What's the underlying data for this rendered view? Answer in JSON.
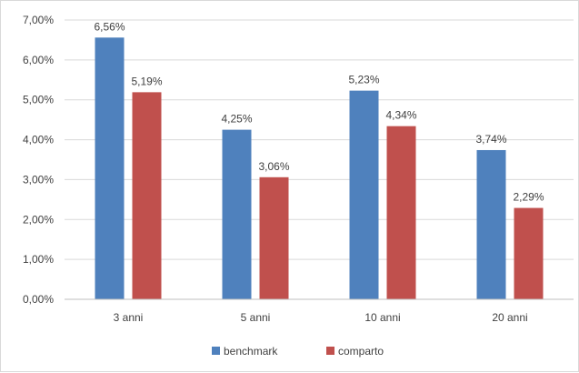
{
  "chart_data": {
    "type": "bar",
    "categories": [
      "3 anni",
      "5 anni",
      "10 anni",
      "20 anni"
    ],
    "series": [
      {
        "name": "benchmark",
        "values": [
          6.56,
          4.25,
          5.23,
          3.74
        ],
        "labels": [
          "6,56%",
          "4,25%",
          "5,23%",
          "3,74%"
        ],
        "color": "#4f81bd"
      },
      {
        "name": "comparto",
        "values": [
          5.19,
          3.06,
          4.34,
          2.29
        ],
        "labels": [
          "5,19%",
          "3,06%",
          "4,34%",
          "2,29%"
        ],
        "color": "#c0504d"
      }
    ],
    "ylim": [
      0,
      7
    ],
    "yticks": [
      0,
      1,
      2,
      3,
      4,
      5,
      6,
      7
    ],
    "ytick_labels": [
      "0,00%",
      "1,00%",
      "2,00%",
      "3,00%",
      "4,00%",
      "5,00%",
      "6,00%",
      "7,00%"
    ],
    "title": "",
    "xlabel": "",
    "ylabel": "",
    "grid": true,
    "legend_position": "bottom"
  }
}
